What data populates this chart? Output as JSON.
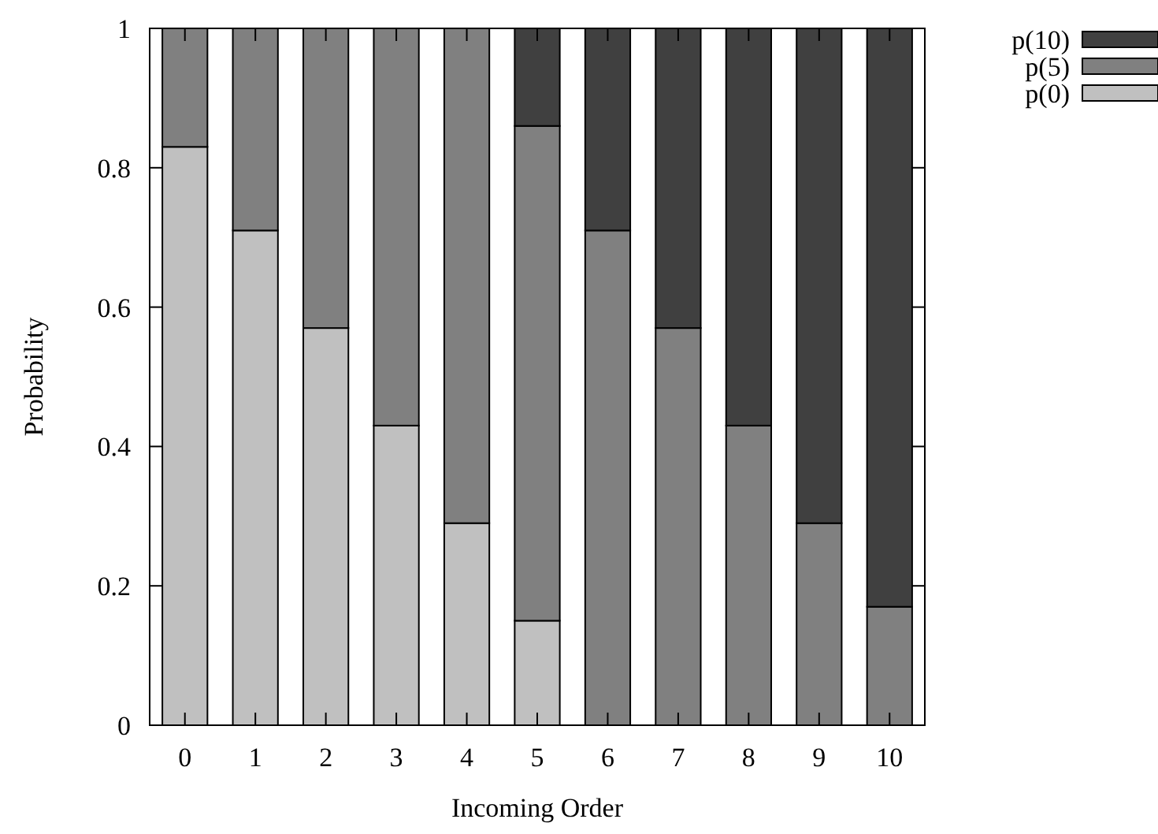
{
  "chart_data": {
    "type": "bar",
    "stacked": true,
    "xlabel": "Incoming Order",
    "ylabel": "Probability",
    "categories": [
      "0",
      "1",
      "2",
      "3",
      "4",
      "5",
      "6",
      "7",
      "8",
      "9",
      "10"
    ],
    "series": [
      {
        "name": "p(0)",
        "color": "#c0c0c0",
        "values": [
          0.83,
          0.71,
          0.57,
          0.43,
          0.29,
          0.15,
          0,
          0,
          0,
          0,
          0
        ]
      },
      {
        "name": "p(5)",
        "color": "#808080",
        "values": [
          0.17,
          0.29,
          0.43,
          0.57,
          0.71,
          0.71,
          0.71,
          0.57,
          0.43,
          0.29,
          0.17
        ]
      },
      {
        "name": "p(10)",
        "color": "#404040",
        "values": [
          0,
          0,
          0,
          0,
          0,
          0.14,
          0.29,
          0.43,
          0.57,
          0.71,
          0.83
        ]
      }
    ],
    "ylim": [
      0,
      1
    ],
    "yticks": [
      0,
      0.2,
      0.4,
      0.6,
      0.8,
      1
    ],
    "legend": "top right",
    "grid": false
  }
}
